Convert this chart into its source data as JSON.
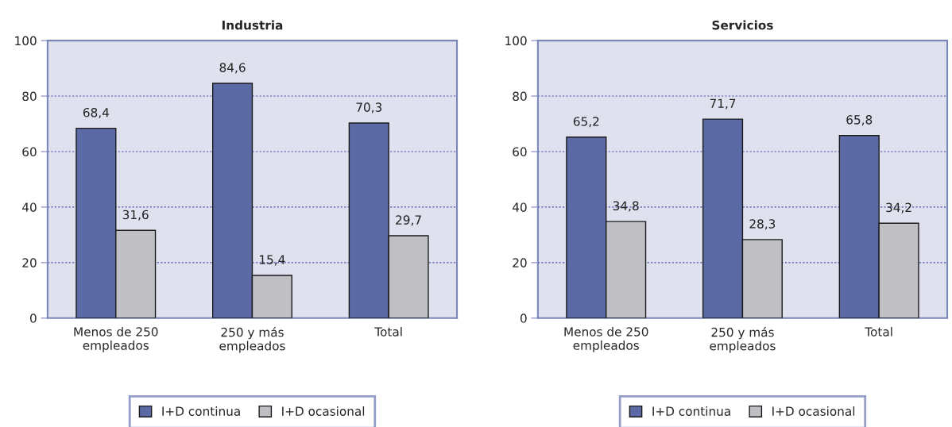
{
  "chart_data": [
    {
      "type": "bar",
      "title": "Industria",
      "categories": [
        "Menos de 250\nempleados",
        "250 y más\nempleados",
        "Total"
      ],
      "series": [
        {
          "name": "I+D continua",
          "color": "#5b6aa5",
          "values": [
            68.4,
            84.6,
            70.3
          ],
          "value_labels": [
            "68,4",
            "84,6",
            "70,3"
          ]
        },
        {
          "name": "I+D ocasional",
          "color": "#bfbfc4",
          "values": [
            31.6,
            15.4,
            29.7
          ],
          "value_labels": [
            "31,6",
            "15,4",
            "29,7"
          ]
        }
      ],
      "ylim": [
        0,
        100
      ],
      "yticks": [
        0,
        20,
        40,
        60,
        80,
        100
      ],
      "grid": "y",
      "legend": "bottom"
    },
    {
      "type": "bar",
      "title": "Servicios",
      "categories": [
        "Menos de 250\nempleados",
        "250 y más\nempleados",
        "Total"
      ],
      "series": [
        {
          "name": "I+D continua",
          "color": "#5b6aa5",
          "values": [
            65.2,
            71.7,
            65.8
          ],
          "value_labels": [
            "65,2",
            "71,7",
            "65,8"
          ]
        },
        {
          "name": "I+D ocasional",
          "color": "#bfbfc4",
          "values": [
            34.8,
            28.3,
            34.2
          ],
          "value_labels": [
            "34,8",
            "28,3",
            "34,2"
          ]
        }
      ],
      "ylim": [
        0,
        100
      ],
      "yticks": [
        0,
        20,
        40,
        60,
        80,
        100
      ],
      "grid": "y",
      "legend": "bottom"
    }
  ]
}
